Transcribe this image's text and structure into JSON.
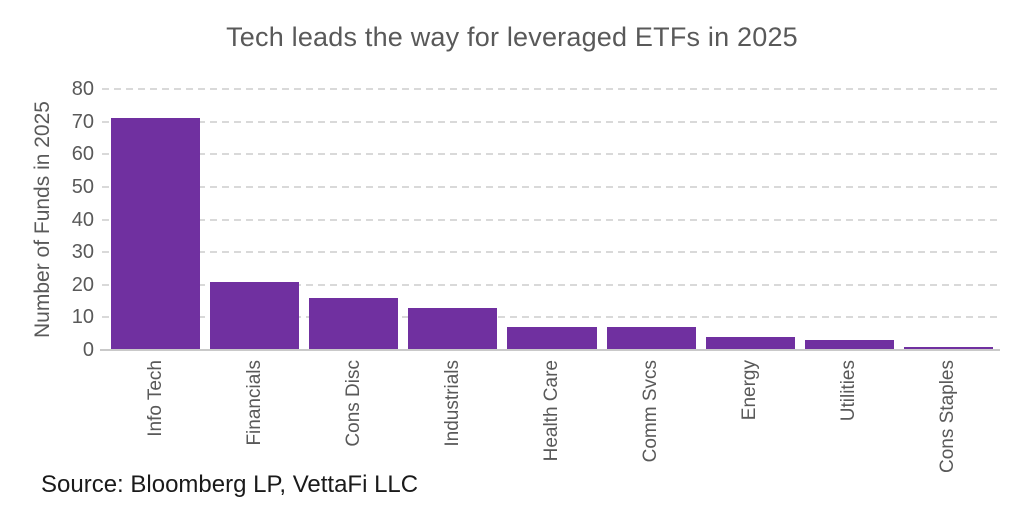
{
  "chart_data": {
    "type": "bar",
    "title": "Tech leads the way for leveraged ETFs in 2025",
    "categories": [
      "Info Tech",
      "Financials",
      "Cons Disc",
      "Industrials",
      "Health Care",
      "Comm Svcs",
      "Energy",
      "Utilities",
      "Cons Staples"
    ],
    "values": [
      71,
      21,
      16,
      13,
      7,
      7,
      4,
      3,
      1
    ],
    "xlabel": "",
    "ylabel": "Number of Funds in 2025",
    "ylim": [
      0,
      80
    ],
    "yticks": [
      0,
      10,
      20,
      30,
      40,
      50,
      60,
      70,
      80
    ],
    "grid": "horizontal-dashed",
    "legend": "none"
  },
  "source": "Source: Bloomberg LP, VettaFi LLC",
  "colors": {
    "bar": "#7030A0",
    "title_text": "#595959",
    "axis_text": "#595959",
    "gridline": "#D9D9D9",
    "axis_line": "#C9C9C9",
    "source_text": "#1A1A1A",
    "background": "#FFFFFF"
  }
}
